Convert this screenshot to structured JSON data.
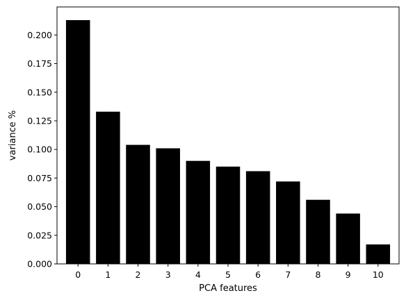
{
  "chart_data": {
    "type": "bar",
    "categories": [
      "0",
      "1",
      "2",
      "3",
      "4",
      "5",
      "6",
      "7",
      "8",
      "9",
      "10"
    ],
    "values": [
      0.213,
      0.133,
      0.104,
      0.101,
      0.09,
      0.085,
      0.081,
      0.072,
      0.056,
      0.044,
      0.017
    ],
    "title": "",
    "xlabel": "PCA features",
    "ylabel": "variance %",
    "ylim": [
      0.0,
      0.2245
    ],
    "yticks": [
      "0.000",
      "0.025",
      "0.050",
      "0.075",
      "0.100",
      "0.125",
      "0.150",
      "0.175",
      "0.200"
    ],
    "bar_color": "#000000",
    "grid": false,
    "legend": "none"
  }
}
